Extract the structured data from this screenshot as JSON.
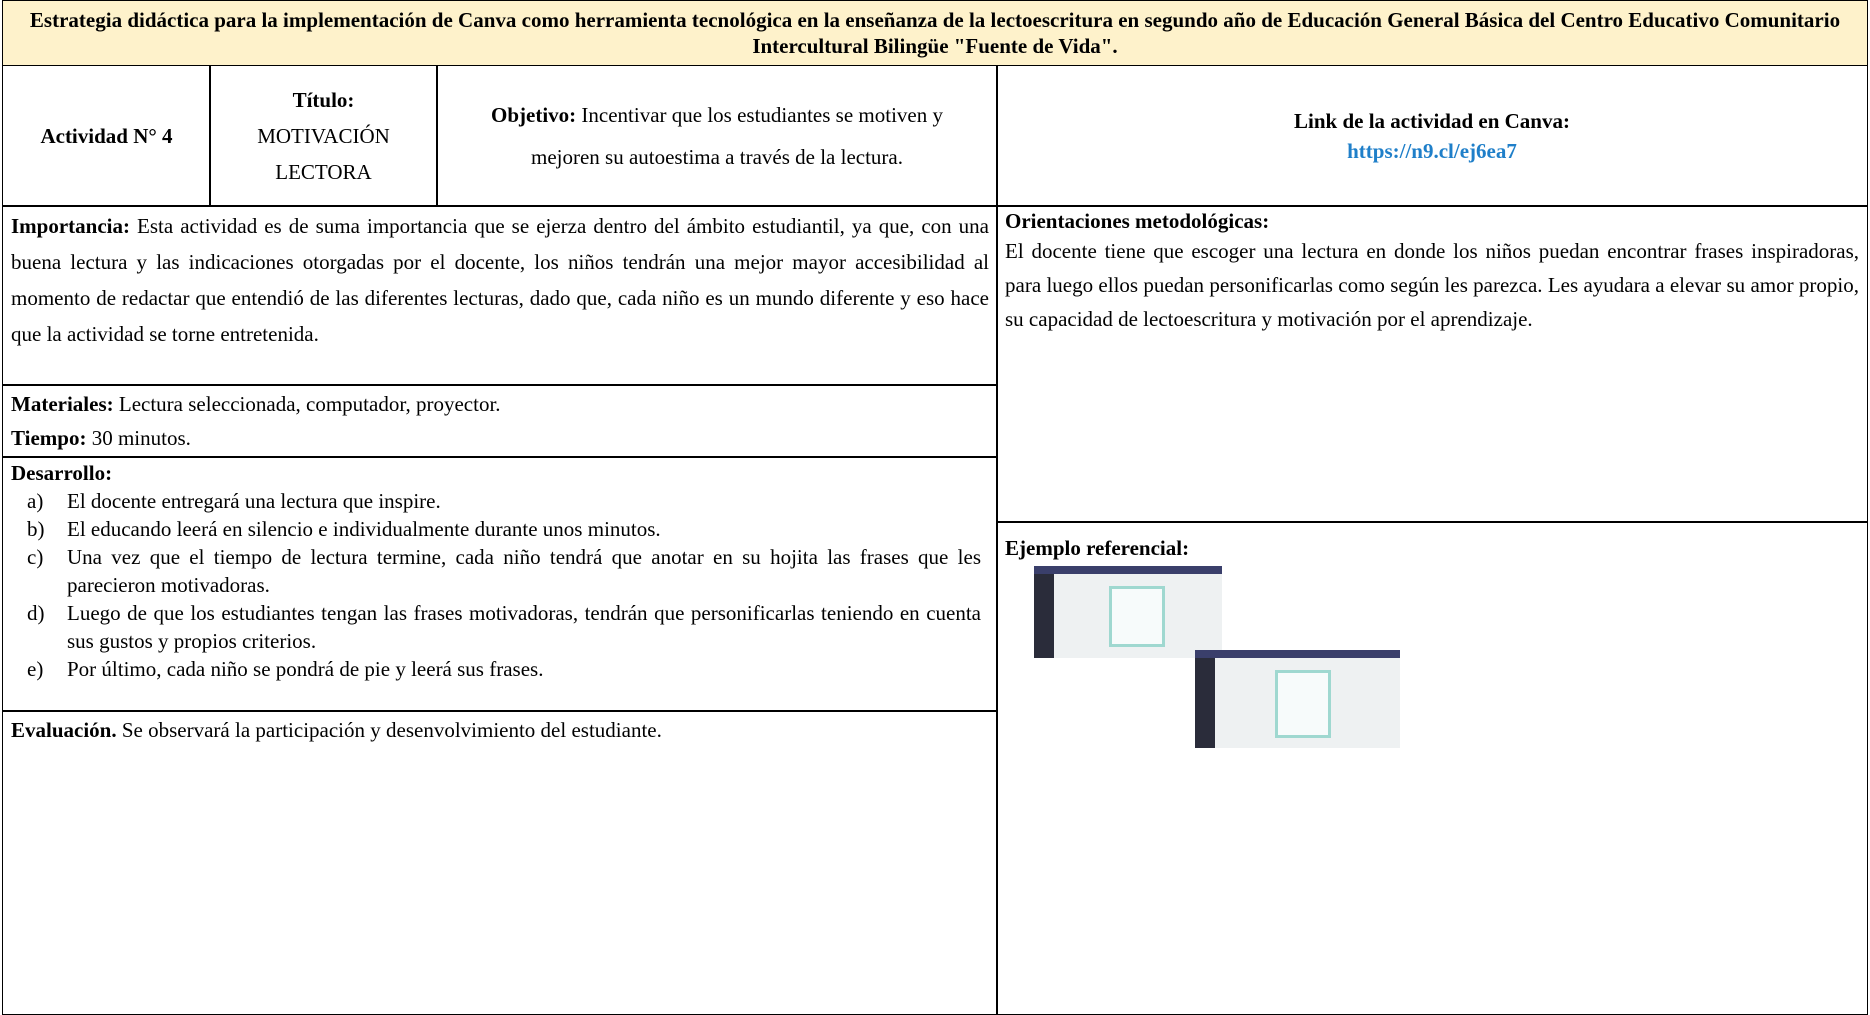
{
  "header": {
    "title": "Estrategia didáctica para la implementación de Canva como herramienta tecnológica en la enseñanza de la lectoescritura en segundo año de Educación General Básica del Centro Educativo Comunitario Intercultural Bilingüe \"Fuente de Vida\"."
  },
  "activity": {
    "number": "Actividad N° 4",
    "title_label": "Título:",
    "title_value": "MOTIVACIÓN LECTORA",
    "objective_label": "Objetivo:",
    "objective_text": "Incentivar que los estudiantes se motiven y mejoren su autoestima a través de la lectura.",
    "link_label": "Link de la actividad en Canva:",
    "link_url": "https://n9.cl/ej6ea7"
  },
  "importance": {
    "label": "Importancia:",
    "text": "Esta actividad es de suma importancia que se ejerza dentro del ámbito estudiantil, ya que, con una buena lectura y las indicaciones otorgadas por el docente, los niños tendrán una mejor mayor accesibilidad al momento de redactar que entendió de las diferentes lecturas, dado que, cada niño es un mundo diferente y eso hace que la actividad se torne entretenida."
  },
  "materials": {
    "label": "Materiales:",
    "text": "Lectura seleccionada, computador, proyector."
  },
  "time": {
    "label": "Tiempo:",
    "text": "30 minutos."
  },
  "development": {
    "label": "Desarrollo:",
    "items": [
      {
        "marker": "a)",
        "text": "El docente entregará una lectura que inspire."
      },
      {
        "marker": "b)",
        "text": "El educando leerá en silencio e individualmente durante unos minutos."
      },
      {
        "marker": "c)",
        "text": "Una vez que el tiempo de lectura termine, cada niño tendrá que anotar en su hojita las frases que les parecieron motivadoras."
      },
      {
        "marker": "d)",
        "text": "Luego de que los estudiantes tengan las frases motivadoras, tendrán que personificarlas teniendo en cuenta sus gustos y propios criterios."
      },
      {
        "marker": "e)",
        "text": "Por último, cada niño se pondrá de pie y leerá sus frases."
      }
    ]
  },
  "evaluation": {
    "label": "Evaluación.",
    "text": "Se observará la participación y desenvolvimiento del estudiante."
  },
  "orientations": {
    "label": "Orientaciones metodológicas:",
    "text": "El docente tiene que escoger una lectura en donde los niños puedan encontrar frases inspiradoras, para luego ellos puedan personificarlas como según les parezca. Les ayudara a elevar su amor propio, su capacidad de lectoescritura y motivación por el aprendizaje."
  },
  "example": {
    "label": "Ejemplo referencial:"
  }
}
